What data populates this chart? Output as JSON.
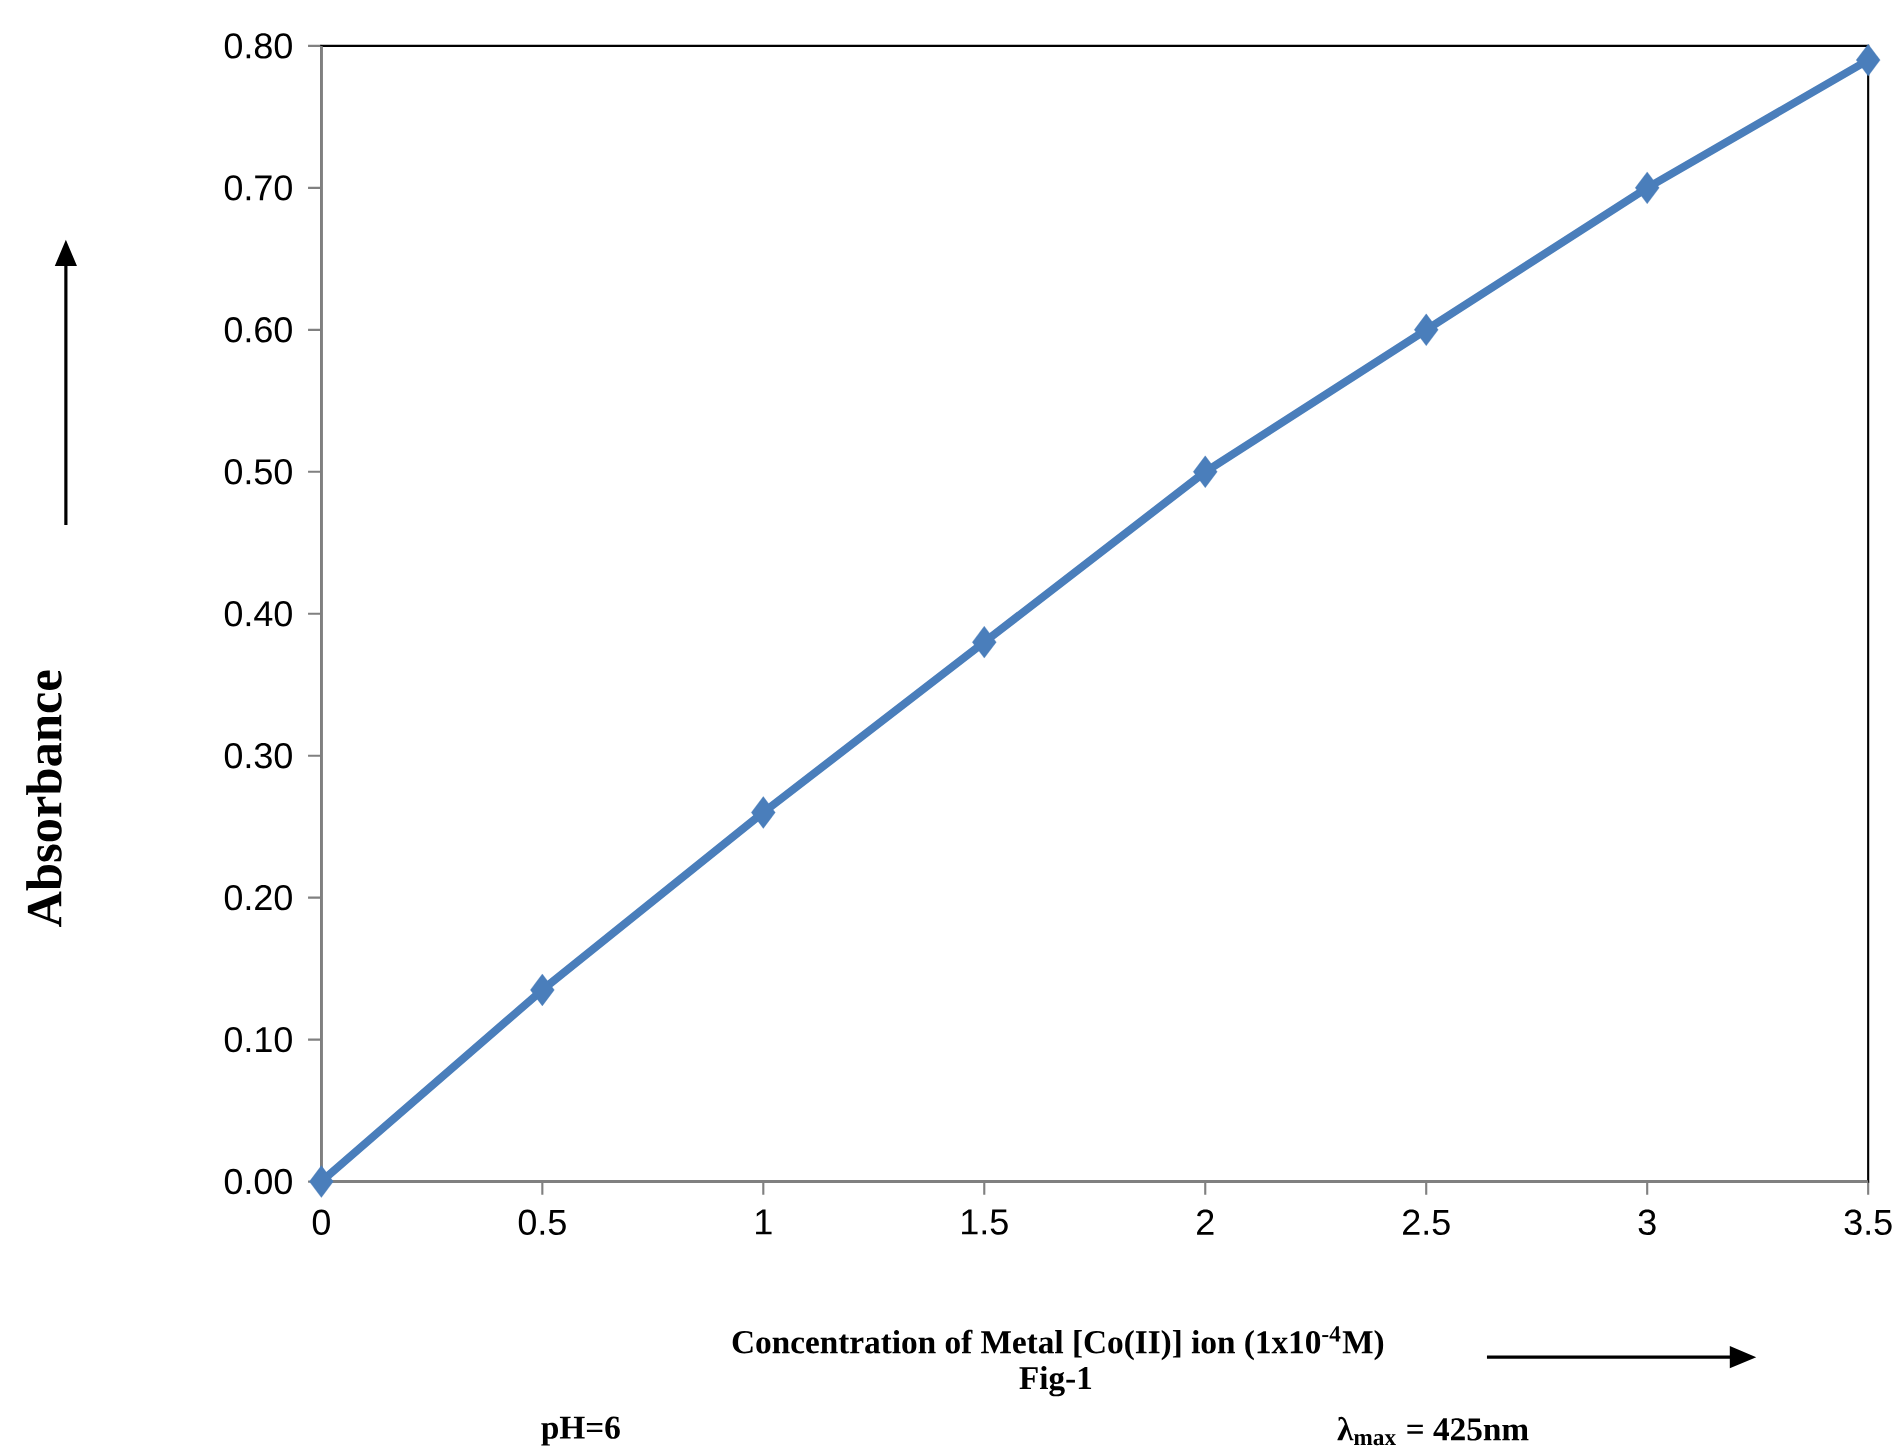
{
  "chart_data": {
    "type": "line",
    "xlabel": "Concentration of Metal [Co(II)] ion (1x10$^{-4}$M)",
    "ylabel": "Absorbance",
    "annotations": [
      "Fig-1",
      "pH=6",
      "λ$_{max}$ = 425nm"
    ],
    "x": [
      0,
      0.5,
      1,
      1.5,
      2,
      2.5,
      3,
      3.5
    ],
    "values": [
      0,
      0.135,
      0.26,
      0.38,
      0.5,
      0.6,
      0.7,
      0.79
    ],
    "color": "#4a7ebb",
    "marker": "diamond",
    "xlim": [
      0,
      3.5
    ],
    "ylim": [
      0,
      0.8
    ],
    "xticks": [
      0,
      0.5,
      1,
      1.5,
      2,
      2.5,
      3,
      3.5
    ],
    "yticks": [
      {
        "value": 0,
        "label": "0.00"
      },
      {
        "value": 0.1,
        "label": "0.10"
      },
      {
        "value": 0.2,
        "label": "0.20"
      },
      {
        "value": 0.3,
        "label": "0.30"
      },
      {
        "value": 0.4,
        "label": "0.40"
      },
      {
        "value": 0.5,
        "label": "0.50"
      },
      {
        "value": 0.6,
        "label": "0.60"
      },
      {
        "value": 0.7,
        "label": "0.70"
      },
      {
        "value": 0.8,
        "label": "0.80"
      }
    ]
  }
}
